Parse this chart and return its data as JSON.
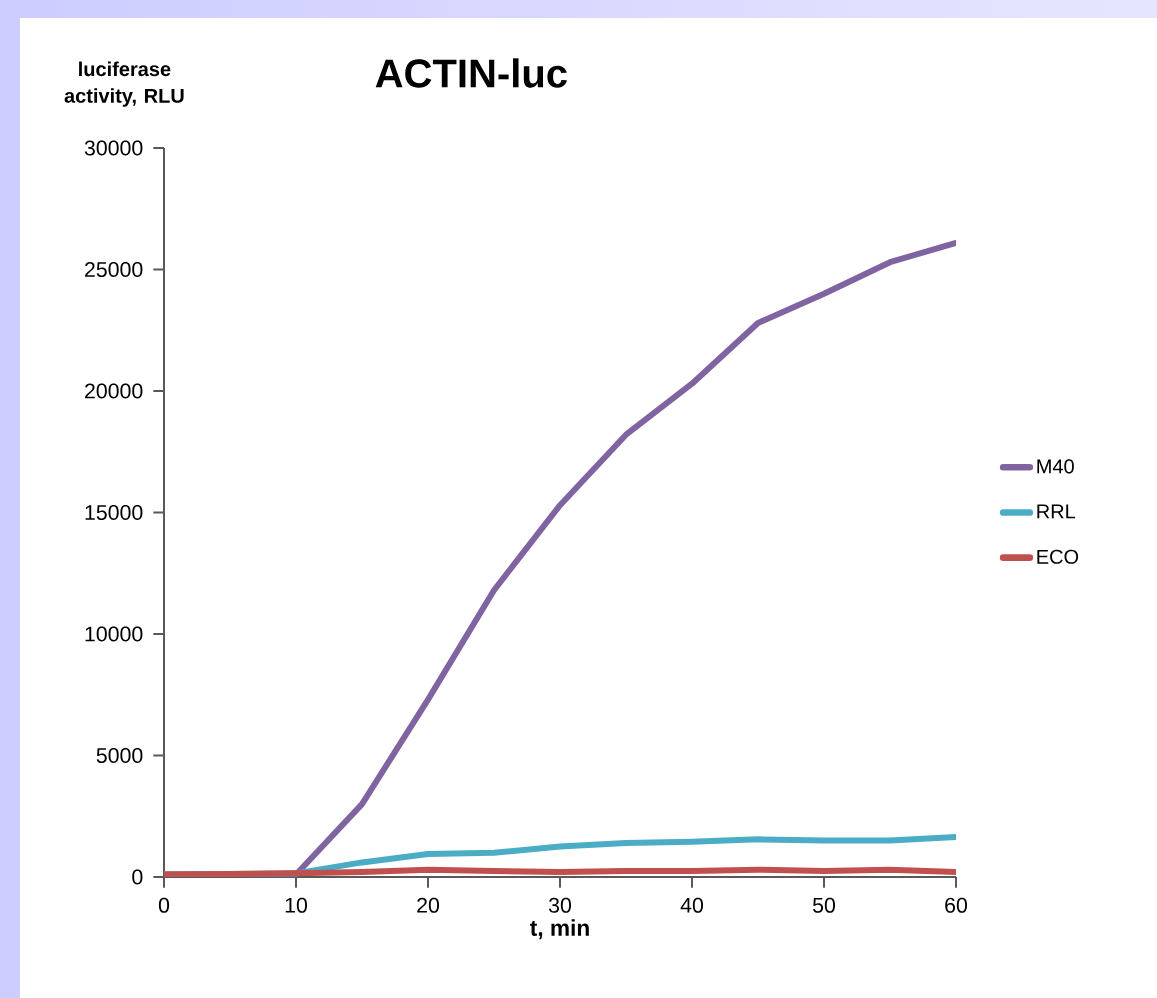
{
  "chart_data": {
    "type": "line",
    "title": "ACTIN-luc",
    "xlabel": "t, min",
    "ylabel": "luciferase activity, RLU",
    "x": [
      0,
      5,
      10,
      15,
      20,
      25,
      30,
      35,
      40,
      45,
      50,
      55,
      60
    ],
    "series": [
      {
        "name": "M40",
        "color": "#8064a2",
        "values": [
          100,
          100,
          100,
          3000,
          7300,
          11800,
          15300,
          18200,
          20300,
          22800,
          24000,
          25300,
          26100
        ]
      },
      {
        "name": "RRL",
        "color": "#4bacc6",
        "values": [
          100,
          null,
          150,
          600,
          950,
          1000,
          1250,
          1400,
          1450,
          1550,
          1500,
          1500,
          1650
        ]
      },
      {
        "name": "ECO",
        "color": "#c0504d",
        "values": [
          100,
          120,
          150,
          200,
          300,
          250,
          200,
          250,
          250,
          300,
          250,
          300,
          200
        ]
      }
    ],
    "xlim": [
      0,
      60
    ],
    "xticks": [
      0,
      10,
      20,
      30,
      40,
      50,
      60
    ],
    "ylim": [
      0,
      30000
    ],
    "yticks": [
      0,
      5000,
      10000,
      15000,
      20000,
      25000,
      30000
    ],
    "legend": "right",
    "grid": false,
    "marker": "none",
    "line_style": "solid"
  }
}
